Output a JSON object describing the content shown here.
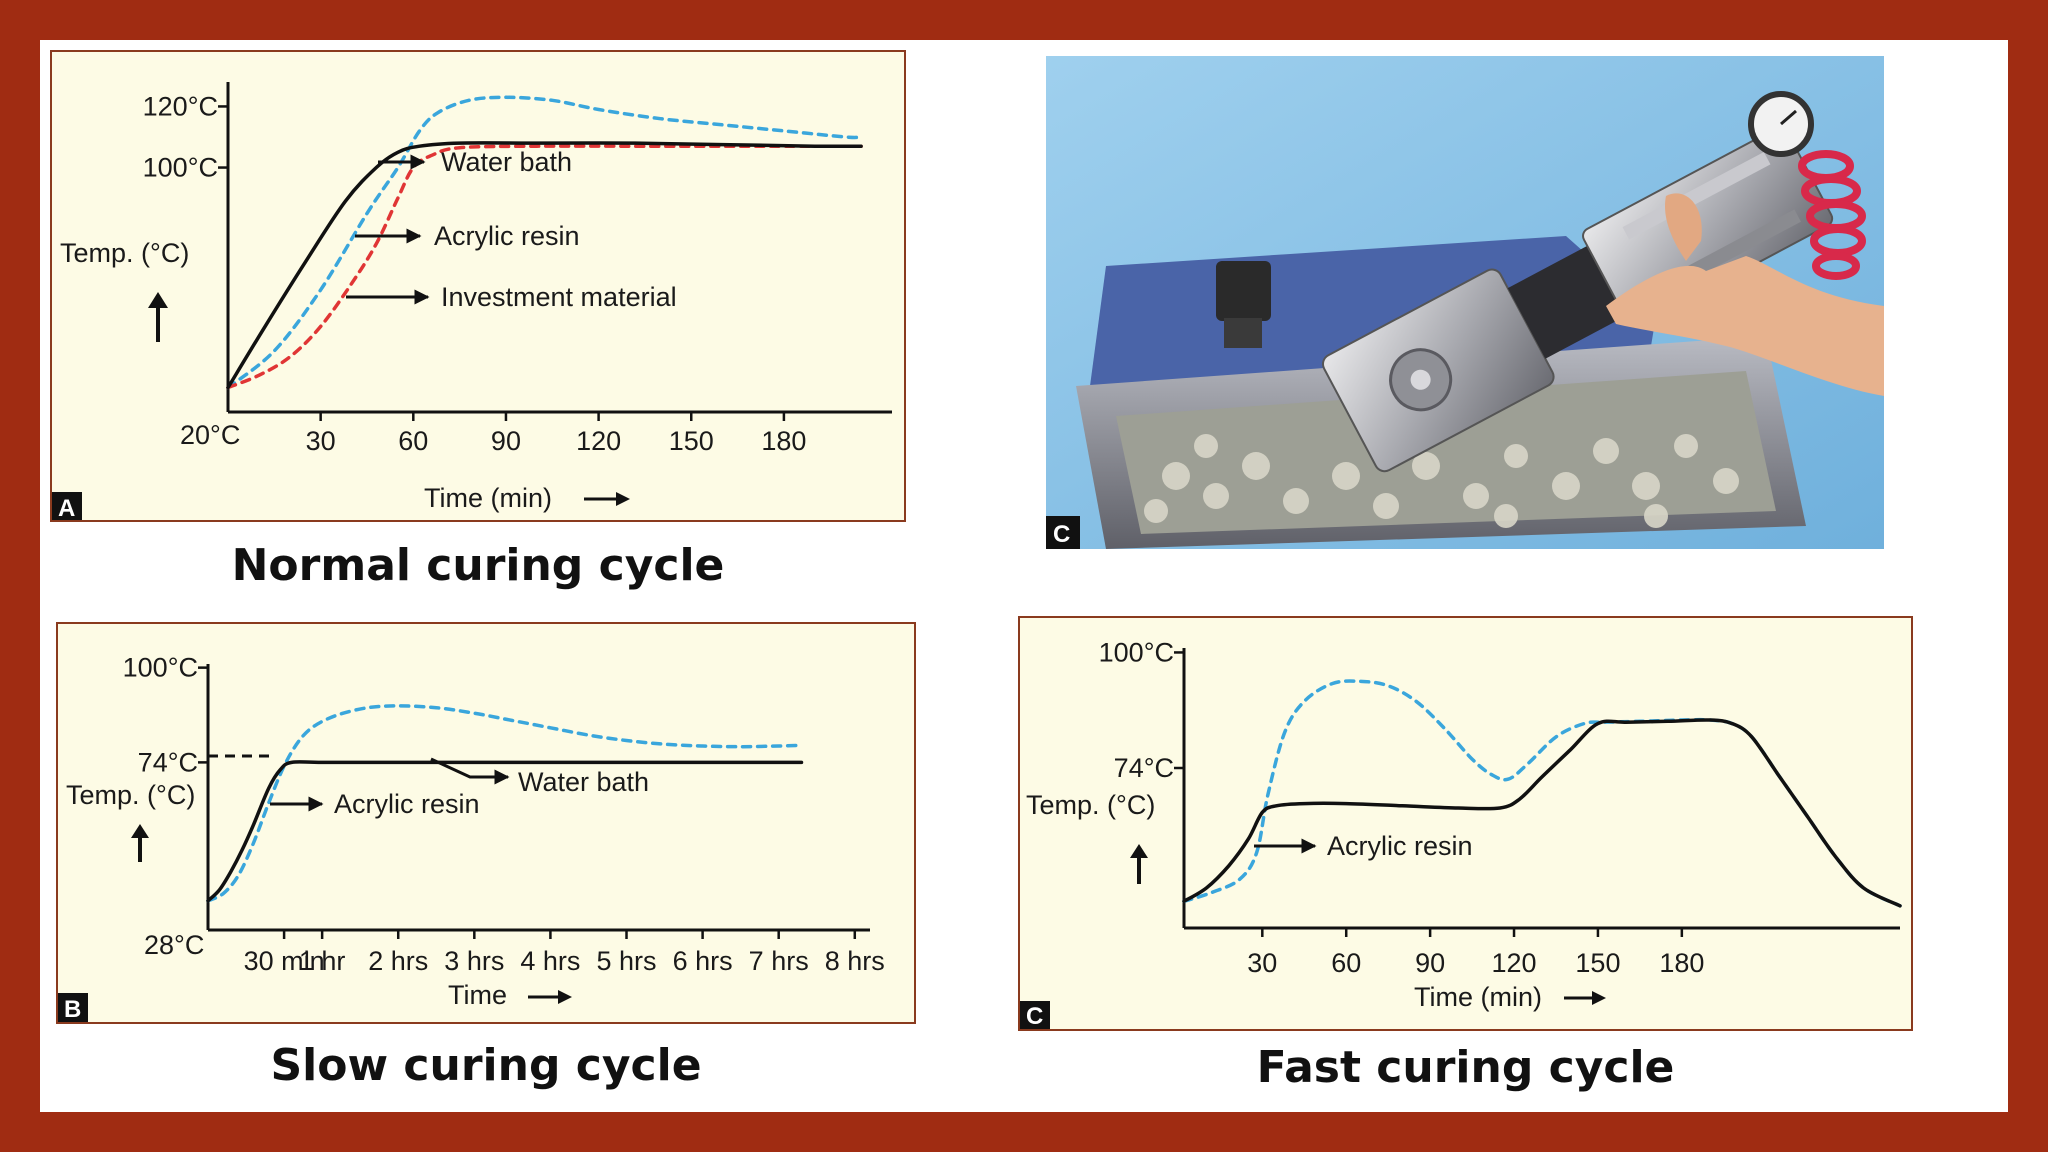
{
  "colors": {
    "frame": "#a02c12",
    "panel_bg": "#fdfbe5",
    "panel_border": "#8a3a1e",
    "water_bath_line": "#111111",
    "acrylic_resin_line": "#3aa6dc",
    "investment_material_line": "#e03535"
  },
  "icons": {
    "up_arrow": "up-arrow-icon",
    "right_arrow": "right-arrow-icon"
  },
  "captions": {
    "normal": "Normal curing cycle",
    "slow": "Slow curing cycle",
    "fast": "Fast curing cycle"
  },
  "photo": {
    "badge": "C"
  },
  "chart_data": [
    {
      "id": "normal",
      "type": "line",
      "badge": "A",
      "ylabel": "Temp. (°C)",
      "xlabel": "Time (min)",
      "y_ticks": [
        {
          "label": "120°C",
          "value": 120
        },
        {
          "label": "100°C",
          "value": 100
        }
      ],
      "origin_label": "20°C",
      "x_ticks": [
        {
          "label": "30",
          "value": 30
        },
        {
          "label": "60",
          "value": 60
        },
        {
          "label": "90",
          "value": 90
        },
        {
          "label": "120",
          "value": 120
        },
        {
          "label": "150",
          "value": 150
        },
        {
          "label": "180",
          "value": 180
        }
      ],
      "xlim": [
        0,
        215
      ],
      "ylim": [
        20,
        128
      ],
      "series": [
        {
          "name": "Water bath",
          "color": "#111111",
          "dash": false,
          "x": [
            0,
            12,
            25,
            38,
            48,
            55,
            62,
            75,
            100,
            130,
            160,
            190,
            205
          ],
          "y": [
            28,
            48,
            69,
            89,
            100,
            105,
            107,
            108,
            108,
            108,
            107.5,
            107,
            107
          ]
        },
        {
          "name": "Acrylic resin",
          "color": "#3aa6dc",
          "dash": true,
          "x": [
            0,
            15,
            30,
            45,
            55,
            62,
            68,
            78,
            90,
            105,
            120,
            140,
            160,
            180,
            200,
            205
          ],
          "y": [
            28,
            40,
            60,
            85,
            100,
            112,
            118,
            122,
            123,
            122,
            119,
            116,
            114,
            112,
            110,
            110
          ]
        },
        {
          "name": "Investment material",
          "color": "#e03535",
          "dash": true,
          "x": [
            0,
            10,
            20,
            30,
            40,
            48,
            55,
            60,
            66,
            75,
            100,
            130,
            160,
            190,
            205
          ],
          "y": [
            28,
            32,
            38,
            48,
            62,
            75,
            90,
            100,
            104,
            106.5,
            107,
            107,
            107,
            107,
            107
          ]
        }
      ],
      "annotations": [
        {
          "text": "Water bath"
        },
        {
          "text": "Acrylic resin"
        },
        {
          "text": "Investment material"
        }
      ]
    },
    {
      "id": "slow",
      "type": "line",
      "badge": "B",
      "ylabel": "Temp. (°C)",
      "xlabel": "Time",
      "y_ticks": [
        {
          "label": "100°C",
          "value": 100
        },
        {
          "label": "74°C",
          "value": 74
        }
      ],
      "origin_label": "28°C",
      "x_ticks": [
        {
          "label": "30 min",
          "value": 0.5
        },
        {
          "label": "1 hr",
          "value": 1
        },
        {
          "label": "2 hrs",
          "value": 2
        },
        {
          "label": "3 hrs",
          "value": 3
        },
        {
          "label": "4 hrs",
          "value": 4
        },
        {
          "label": "5 hrs",
          "value": 5
        },
        {
          "label": "6 hrs",
          "value": 6
        },
        {
          "label": "7 hrs",
          "value": 7
        },
        {
          "label": "8 hrs",
          "value": 8
        }
      ],
      "x_tick_positions": [
        0.5,
        1,
        2,
        3,
        4,
        5,
        6,
        7,
        8
      ],
      "xlim": [
        -0.5,
        8.2
      ],
      "ylim": [
        28,
        101
      ],
      "series": [
        {
          "name": "Water bath",
          "color": "#111111",
          "dash": false,
          "x": [
            -0.5,
            -0.35,
            -0.2,
            -0.05,
            0.1,
            0.3,
            0.45,
            0.6,
            1,
            2,
            3,
            4,
            5,
            6,
            7,
            7.3
          ],
          "y": [
            36,
            39,
            44,
            50,
            57,
            67,
            72,
            74,
            74,
            74,
            74,
            74,
            74,
            74,
            74,
            74
          ]
        },
        {
          "name": "Acrylic resin",
          "color": "#3aa6dc",
          "dash": true,
          "x": [
            -0.5,
            -0.3,
            -0.1,
            0.1,
            0.3,
            0.5,
            0.7,
            0.9,
            1.2,
            1.6,
            2,
            2.5,
            3,
            3.5,
            4,
            4.5,
            5,
            5.5,
            6,
            6.5,
            7,
            7.3
          ],
          "y": [
            36,
            38,
            43,
            52,
            63,
            73,
            80,
            84,
            87,
            89,
            89.5,
            89,
            87.5,
            85.5,
            83.5,
            81.5,
            80,
            79,
            78.5,
            78.3,
            78.5,
            78.7
          ]
        }
      ],
      "annotations": [
        {
          "text": "Acrylic resin"
        },
        {
          "text": "Water bath"
        }
      ]
    },
    {
      "id": "fast",
      "type": "line",
      "badge": "C",
      "ylabel": "Temp. (°C)",
      "xlabel": "Time (min)",
      "y_ticks": [
        {
          "label": "100°C",
          "value": 100
        },
        {
          "label": "74°C",
          "value": 74
        }
      ],
      "origin_label": "",
      "x_ticks": [
        {
          "label": "30",
          "value": 30
        },
        {
          "label": "60",
          "value": 60
        },
        {
          "label": "90",
          "value": 90
        },
        {
          "label": "120",
          "value": 120
        },
        {
          "label": "150",
          "value": 150
        },
        {
          "label": "180",
          "value": 180
        }
      ],
      "xlim": [
        2,
        258
      ],
      "ylim": [
        38,
        101
      ],
      "series": [
        {
          "name": "Water bath",
          "color": "#111111",
          "dash": false,
          "x": [
            2,
            10,
            18,
            25,
            30,
            35,
            45,
            60,
            80,
            100,
            115,
            122,
            130,
            140,
            150,
            160,
            175,
            190,
            198,
            205,
            215,
            225,
            235,
            245,
            258
          ],
          "y": [
            44,
            47,
            52,
            58,
            64,
            65.5,
            66,
            66,
            65.5,
            65,
            65,
            67,
            72,
            78,
            84,
            84.3,
            84.5,
            84.8,
            84,
            81,
            72,
            63,
            54,
            47,
            43
          ]
        },
        {
          "name": "Acrylic resin",
          "color": "#3aa6dc",
          "dash": true,
          "x": [
            2,
            12,
            22,
            28,
            32,
            38,
            45,
            55,
            65,
            75,
            85,
            95,
            105,
            112,
            118,
            125,
            135,
            145,
            152,
            165,
            180,
            190,
            198,
            205,
            215,
            225,
            235,
            245,
            258
          ],
          "y": [
            44,
            46,
            49,
            55,
            68,
            82,
            89,
            93,
            93.5,
            92.5,
            89,
            83,
            76,
            72.5,
            71.5,
            75,
            81,
            84,
            84.3,
            84.5,
            84.8,
            84.8,
            84,
            81,
            72,
            63,
            54,
            47,
            43
          ]
        }
      ],
      "annotations": [
        {
          "text": "Acrylic resin"
        }
      ]
    }
  ]
}
